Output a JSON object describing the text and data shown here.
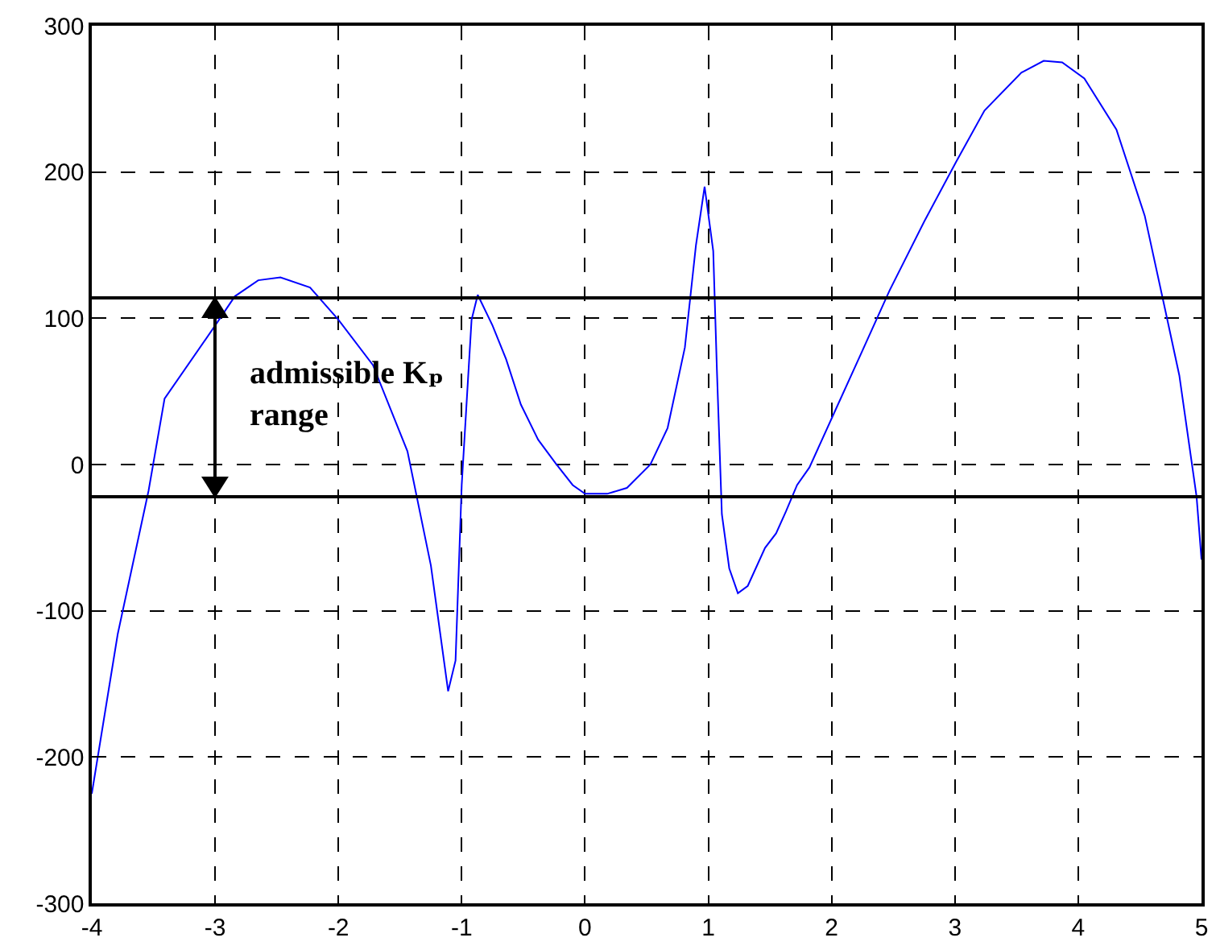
{
  "chart_data": {
    "type": "line",
    "x": [
      -4,
      -3.79,
      -3.54,
      -3.41,
      -3.0,
      -2.84,
      -2.65,
      -2.47,
      -2.23,
      -2.0,
      -1.72,
      -1.44,
      -1.25,
      -1.11,
      -1.05,
      -1.0,
      -0.92,
      -0.87,
      -0.75,
      -0.64,
      -0.52,
      -0.38,
      -0.24,
      -0.1,
      0.0,
      0.18,
      0.34,
      0.53,
      0.67,
      0.81,
      0.9,
      0.97,
      1.04,
      1.07,
      1.11,
      1.17,
      1.24,
      1.32,
      1.46,
      1.55,
      1.63,
      1.72,
      1.82,
      2.03,
      2.24,
      2.47,
      2.75,
      3.01,
      3.24,
      3.54,
      3.72,
      3.87,
      4.05,
      4.31,
      4.54,
      4.71,
      4.82,
      4.96,
      5.0
    ],
    "series": [
      {
        "color": "#0000ff",
        "values": [
          -225,
          -116,
          -18,
          45,
          95,
          115,
          126,
          128,
          121,
          99,
          68,
          9,
          -69,
          -155,
          -134,
          -14,
          99,
          116,
          95,
          72,
          41,
          17,
          1,
          -14,
          -20,
          -20,
          -16,
          0,
          25,
          80,
          150,
          190,
          146,
          64,
          -34,
          -71,
          -88,
          -83,
          -57,
          -47,
          -32,
          -14,
          -2,
          37,
          76,
          119,
          166,
          207,
          242,
          268,
          276,
          275,
          264,
          229,
          170,
          104,
          61,
          -22,
          -65
        ]
      }
    ],
    "xlim": [
      -4,
      5
    ],
    "xticks": [
      -4,
      -3,
      -2,
      -1,
      0,
      1,
      2,
      3,
      4,
      5
    ],
    "ylim": [
      -300,
      300
    ],
    "yticks": [
      -300,
      -200,
      -100,
      0,
      100,
      200,
      300
    ],
    "grid": true,
    "line_style": "solid",
    "ref_lines": [
      {
        "axis": "y",
        "value": 114,
        "color": "#000000"
      },
      {
        "axis": "y",
        "value": -22,
        "color": "#000000"
      }
    ],
    "annotations": [
      "admissible Kₚ range"
    ]
  }
}
